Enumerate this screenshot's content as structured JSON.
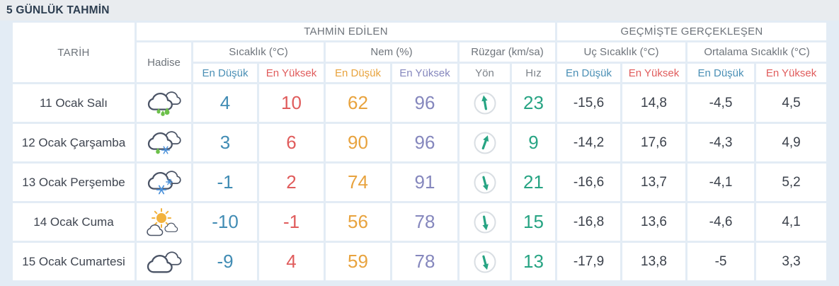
{
  "title": "5 GÜNLÜK TAHMİN",
  "colors": {
    "low_blue": "#418cb4",
    "high_red": "#e05c5c",
    "humidity_low_orange": "#e8a33e",
    "humidity_high_purple": "#8587bd",
    "wind_green": "#27a483",
    "dark_value": "#3b414b",
    "header_gray": "#6e747b",
    "title_navy": "#2d3e50"
  },
  "table": {
    "headers": {
      "date": "TARİH",
      "predicted_group": "TAHMİN EDİLEN",
      "past_group": "GEÇMİŞTE GERÇEKLEŞEN",
      "condition": "Hadise",
      "temperature": "Sıcaklık (°C)",
      "humidity": "Nem (%)",
      "wind": "Rüzgar (km/sa)",
      "extreme_temperature": "Uç Sıcaklık (°C)",
      "average_temperature": "Ortalama Sıcaklık (°C)",
      "lowest": "En Düşük",
      "highest": "En Yüksek",
      "wind_direction": "Yön",
      "wind_speed": "Hız"
    },
    "rows": [
      {
        "date": "11 Ocak Salı",
        "condition_icon": "rain-cloud-icon",
        "temp_low": "4",
        "temp_high": "10",
        "humidity_low": "62",
        "humidity_high": "96",
        "wind_direction_deg": -10,
        "wind_speed": "23",
        "extreme_low": "-15,6",
        "extreme_high": "14,8",
        "average_low": "-4,5",
        "average_high": "4,5"
      },
      {
        "date": "12 Ocak Çarşamba",
        "condition_icon": "rain-snow-cloud-icon",
        "temp_low": "3",
        "temp_high": "6",
        "humidity_low": "90",
        "humidity_high": "96",
        "wind_direction_deg": 20,
        "wind_speed": "9",
        "extreme_low": "-14,2",
        "extreme_high": "17,6",
        "average_low": "-4,3",
        "average_high": "4,9"
      },
      {
        "date": "13 Ocak Perşembe",
        "condition_icon": "snow-cloud-icon",
        "temp_low": "-1",
        "temp_high": "2",
        "humidity_low": "74",
        "humidity_high": "91",
        "wind_direction_deg": 165,
        "wind_speed": "21",
        "extreme_low": "-16,6",
        "extreme_high": "13,7",
        "average_low": "-4,1",
        "average_high": "5,2"
      },
      {
        "date": "14 Ocak Cuma",
        "condition_icon": "partly-sunny-icon",
        "temp_low": "-10",
        "temp_high": "-1",
        "humidity_low": "56",
        "humidity_high": "78",
        "wind_direction_deg": 170,
        "wind_speed": "15",
        "extreme_low": "-16,8",
        "extreme_high": "13,6",
        "average_low": "-4,6",
        "average_high": "4,1"
      },
      {
        "date": "15 Ocak Cumartesi",
        "condition_icon": "cloudy-icon",
        "temp_low": "-9",
        "temp_high": "4",
        "humidity_low": "59",
        "humidity_high": "78",
        "wind_direction_deg": 165,
        "wind_speed": "13",
        "extreme_low": "-17,9",
        "extreme_high": "13,8",
        "average_low": "-5",
        "average_high": "3,3"
      }
    ]
  }
}
